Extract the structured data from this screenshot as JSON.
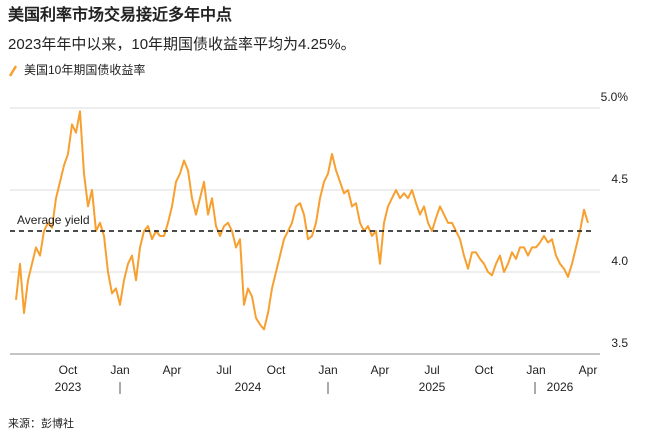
{
  "chart_data": {
    "type": "line",
    "title": "美国利率市场交易接近多年中点",
    "subtitle": "2023年年中以来，10年期国债收益率平均为4.25%。",
    "source": "来源：彭博社",
    "annotation": "Average yield",
    "average": 4.25,
    "categories": [
      null,
      null,
      null,
      null,
      null,
      null,
      null,
      null,
      null,
      null,
      null,
      null,
      null,
      "Oct",
      null,
      null,
      null,
      null,
      null,
      null,
      null,
      null,
      null,
      null,
      null,
      null,
      "Jan",
      null,
      null,
      null,
      null,
      null,
      null,
      null,
      null,
      null,
      null,
      null,
      null,
      "Apr",
      null,
      null,
      null,
      null,
      null,
      null,
      null,
      null,
      null,
      null,
      null,
      null,
      "Jul",
      null,
      null,
      null,
      null,
      null,
      null,
      null,
      null,
      null,
      null,
      null,
      null,
      "Oct",
      null,
      null,
      null,
      null,
      null,
      null,
      null,
      null,
      null,
      null,
      null,
      null,
      "Jan",
      null,
      null,
      null,
      null,
      null,
      null,
      null,
      null,
      null,
      null,
      null,
      null,
      "Apr",
      null,
      null,
      null,
      null,
      null,
      null,
      null,
      null,
      null,
      null,
      null,
      null,
      "Jul",
      null,
      null,
      null,
      null,
      null,
      null,
      null,
      null,
      null,
      null,
      null,
      null,
      "Oct",
      null,
      null,
      null,
      null,
      null,
      null,
      null,
      null,
      null,
      null,
      null,
      null,
      "Jan",
      null,
      null,
      null,
      null,
      null,
      null,
      null,
      null,
      null,
      null,
      null,
      null,
      "Apr"
    ],
    "category_years": [
      null,
      null,
      null,
      null,
      null,
      null,
      null,
      null,
      null,
      null,
      null,
      null,
      null,
      "2023",
      null,
      null,
      null,
      null,
      null,
      null,
      null,
      null,
      null,
      null,
      null,
      null,
      null,
      null,
      null,
      null,
      null,
      null,
      null,
      null,
      null,
      null,
      null,
      null,
      null,
      null,
      null,
      null,
      null,
      null,
      null,
      null,
      null,
      null,
      null,
      null,
      null,
      null,
      null,
      null,
      null,
      null,
      null,
      null,
      "2024",
      null,
      null,
      null,
      null,
      null,
      null,
      null,
      null,
      null,
      null,
      null,
      null,
      null,
      null,
      null,
      null,
      null,
      null,
      null,
      null,
      null,
      null,
      null,
      null,
      null,
      null,
      null,
      null,
      null,
      null,
      null,
      null,
      null,
      null,
      null,
      null,
      null,
      null,
      null,
      null,
      null,
      null,
      null,
      null,
      null,
      "2025",
      null,
      null,
      null,
      null,
      null,
      null,
      null,
      null,
      null,
      null,
      null,
      null,
      null,
      null,
      null,
      null,
      null,
      null,
      null,
      null,
      null,
      null,
      null,
      null,
      null,
      null,
      null,
      null,
      null,
      null,
      null,
      "2026",
      null,
      null,
      null,
      null,
      null,
      null,
      null
    ],
    "series": [
      {
        "name": "美国10年期国债收益率",
        "color": "#f7a030",
        "values": [
          3.83,
          4.05,
          3.75,
          3.95,
          4.05,
          4.15,
          4.1,
          4.25,
          4.3,
          4.27,
          4.45,
          4.55,
          4.65,
          4.72,
          4.9,
          4.85,
          4.98,
          4.6,
          4.4,
          4.5,
          4.25,
          4.3,
          4.22,
          4.0,
          3.87,
          3.9,
          3.8,
          3.95,
          4.05,
          4.1,
          3.95,
          4.15,
          4.25,
          4.28,
          4.2,
          4.25,
          4.22,
          4.22,
          4.3,
          4.4,
          4.55,
          4.6,
          4.68,
          4.62,
          4.45,
          4.35,
          4.45,
          4.55,
          4.35,
          4.45,
          4.28,
          4.22,
          4.28,
          4.3,
          4.25,
          4.15,
          4.2,
          3.8,
          3.9,
          3.85,
          3.72,
          3.68,
          3.65,
          3.75,
          3.9,
          4.0,
          4.1,
          4.2,
          4.25,
          4.3,
          4.4,
          4.42,
          4.35,
          4.2,
          4.22,
          4.3,
          4.45,
          4.55,
          4.6,
          4.72,
          4.62,
          4.55,
          4.48,
          4.5,
          4.4,
          4.42,
          4.3,
          4.25,
          4.28,
          4.22,
          4.25,
          4.05,
          4.3,
          4.4,
          4.45,
          4.5,
          4.45,
          4.48,
          4.45,
          4.5,
          4.42,
          4.35,
          4.4,
          4.3,
          4.25,
          4.33,
          4.4,
          4.35,
          4.3,
          4.3,
          4.25,
          4.2,
          4.1,
          4.02,
          4.12,
          4.12,
          4.08,
          4.05,
          4.0,
          3.98,
          4.05,
          4.1,
          4.0,
          4.05,
          4.12,
          4.08,
          4.15,
          4.15,
          4.1,
          4.15,
          4.15,
          4.18,
          4.22,
          4.18,
          4.2,
          4.1,
          4.05,
          4.02,
          3.97,
          4.05,
          4.15,
          4.25,
          4.38,
          4.3
        ]
      }
    ],
    "ylim": [
      3.5,
      5.11
    ],
    "yticks": [
      3.5,
      {
        "value": 4,
        "label": "4.0"
      },
      4.5,
      {
        "value": 5,
        "label": "5.0%"
      }
    ],
    "grid": true
  }
}
